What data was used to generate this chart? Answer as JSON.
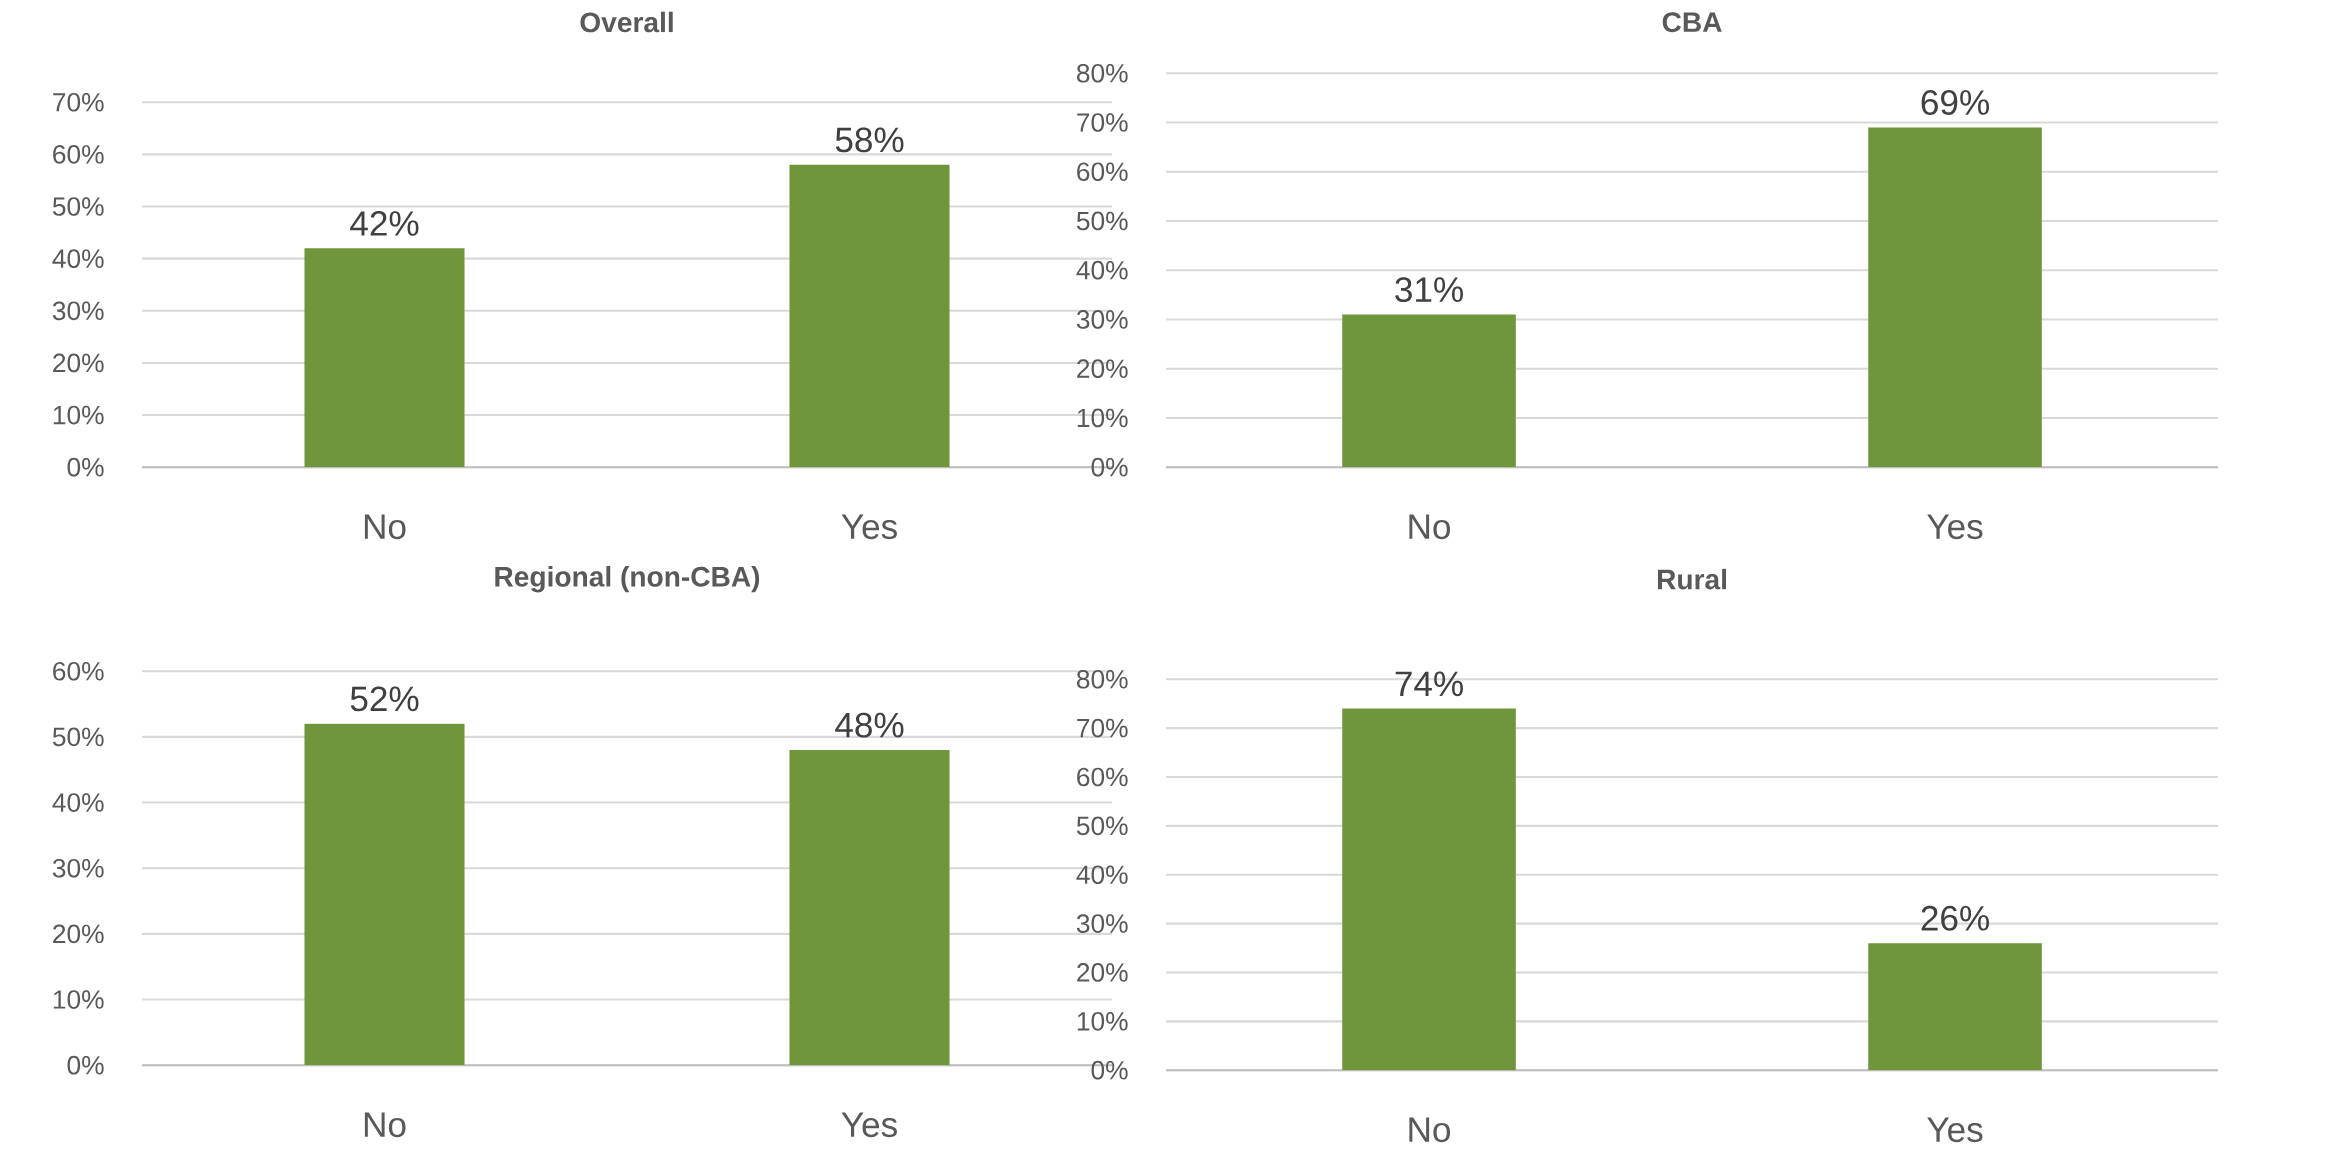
{
  "chart_data": [
    {
      "type": "bar",
      "title": "Overall",
      "categories": [
        "No",
        "Yes"
      ],
      "values": [
        42,
        58
      ],
      "value_labels": [
        "42%",
        "58%"
      ],
      "color": "#70963c",
      "ylim": [
        0,
        70
      ],
      "yticks": [
        {
          "value": 0,
          "label": "0%"
        },
        {
          "value": 10,
          "label": "10%"
        },
        {
          "value": 20,
          "label": "20%"
        },
        {
          "value": 30,
          "label": "30%"
        },
        {
          "value": 40,
          "label": "40%"
        },
        {
          "value": 50,
          "label": "50%"
        },
        {
          "value": 60,
          "label": "60%"
        },
        {
          "value": 70,
          "label": "70%"
        }
      ],
      "grid": "y"
    },
    {
      "type": "bar",
      "title": "CBA",
      "categories": [
        "No",
        "Yes"
      ],
      "values": [
        31,
        69
      ],
      "value_labels": [
        "31%",
        "69%"
      ],
      "color": "#70963c",
      "ylim": [
        0,
        80
      ],
      "yticks": [
        {
          "value": 0,
          "label": "0%"
        },
        {
          "value": 10,
          "label": "10%"
        },
        {
          "value": 20,
          "label": "20%"
        },
        {
          "value": 30,
          "label": "30%"
        },
        {
          "value": 40,
          "label": "40%"
        },
        {
          "value": 50,
          "label": "50%"
        },
        {
          "value": 60,
          "label": "60%"
        },
        {
          "value": 70,
          "label": "70%"
        },
        {
          "value": 80,
          "label": "80%"
        }
      ],
      "grid": "y"
    },
    {
      "type": "bar",
      "title": "Regional (non-CBA)",
      "categories": [
        "No",
        "Yes"
      ],
      "values": [
        52,
        48
      ],
      "value_labels": [
        "52%",
        "48%"
      ],
      "color": "#70963c",
      "ylim": [
        0,
        60
      ],
      "yticks": [
        {
          "value": 0,
          "label": "0%"
        },
        {
          "value": 10,
          "label": "10%"
        },
        {
          "value": 20,
          "label": "20%"
        },
        {
          "value": 30,
          "label": "30%"
        },
        {
          "value": 40,
          "label": "40%"
        },
        {
          "value": 50,
          "label": "50%"
        },
        {
          "value": 60,
          "label": "60%"
        }
      ],
      "grid": "y"
    },
    {
      "type": "bar",
      "title": "Rural",
      "categories": [
        "No",
        "Yes"
      ],
      "values": [
        74,
        26
      ],
      "value_labels": [
        "74%",
        "26%"
      ],
      "color": "#70963c",
      "ylim": [
        0,
        80
      ],
      "yticks": [
        {
          "value": 0,
          "label": "0%"
        },
        {
          "value": 10,
          "label": "10%"
        },
        {
          "value": 20,
          "label": "20%"
        },
        {
          "value": 30,
          "label": "30%"
        },
        {
          "value": 40,
          "label": "40%"
        },
        {
          "value": 50,
          "label": "50%"
        },
        {
          "value": 60,
          "label": "60%"
        },
        {
          "value": 70,
          "label": "70%"
        },
        {
          "value": 80,
          "label": "80%"
        }
      ],
      "grid": "y"
    }
  ]
}
